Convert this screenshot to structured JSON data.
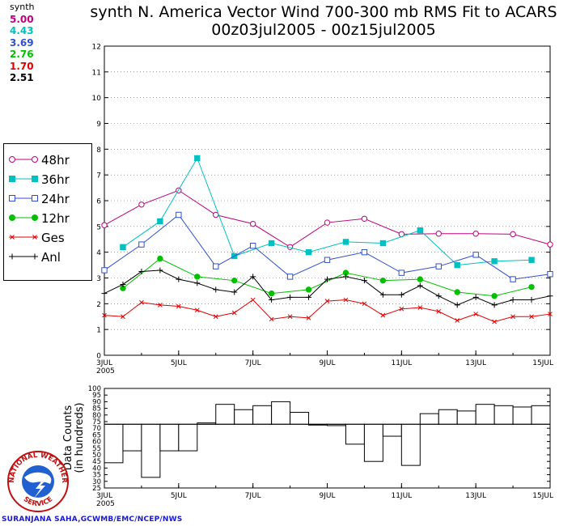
{
  "titles": {
    "line1": "synth N. America Vector Wind 700-300 mb RMS Fit to ACARS",
    "line2": "00z03jul2005 - 00z15jul2005"
  },
  "stats": {
    "header": "synth",
    "items": [
      {
        "value": "5.00",
        "color": "#c0007f"
      },
      {
        "value": "4.43",
        "color": "#00c0c0"
      },
      {
        "value": "3.69",
        "color": "#3050d0"
      },
      {
        "value": "2.76",
        "color": "#00c000"
      },
      {
        "value": "1.70",
        "color": "#e00000"
      },
      {
        "value": "2.51",
        "color": "#000000"
      }
    ]
  },
  "legend": [
    {
      "label": "48hr",
      "color": "#c0007f",
      "marker": "circle-open"
    },
    {
      "label": "36hr",
      "color": "#00c0c0",
      "marker": "square-filled"
    },
    {
      "label": "24hr",
      "color": "#3050d0",
      "marker": "square-open"
    },
    {
      "label": "12hr",
      "color": "#00c000",
      "marker": "circle-filled"
    },
    {
      "label": "Ges",
      "color": "#e00000",
      "marker": "x"
    },
    {
      "label": "Anl",
      "color": "#000000",
      "marker": "plus"
    }
  ],
  "logo": {
    "top_text": "NATIONAL WEATHER",
    "bottom_text": "SERVICE",
    "ring_color": "#c01010",
    "disc_color": "#2060d0"
  },
  "credit": "SURANJANA SAHA,GCWMB/EMC/NCEP/NWS",
  "chart_data": [
    {
      "type": "line",
      "ylim": [
        0,
        12
      ],
      "y_ticks": [
        "0",
        "1",
        "2",
        "3",
        "4",
        "5",
        "6",
        "7",
        "8",
        "9",
        "10",
        "11",
        "12"
      ],
      "x_ticks": [
        "3JUL\n2005",
        "5JUL",
        "7JUL",
        "9JUL",
        "11JUL",
        "13JUL",
        "15JUL"
      ],
      "xlim": [
        3,
        15
      ],
      "grid": "horizontal-dotted",
      "series": [
        {
          "name": "48hr",
          "color": "#c0007f",
          "marker": "circle-open",
          "x": [
            3,
            4,
            5,
            6,
            7,
            8,
            9,
            10,
            11,
            12,
            13,
            14,
            15
          ],
          "y": [
            5.05,
            5.85,
            6.4,
            5.45,
            5.1,
            4.2,
            5.15,
            5.3,
            4.7,
            4.72,
            4.72,
            4.7,
            4.3
          ]
        },
        {
          "name": "36hr",
          "color": "#00c0c0",
          "marker": "square-filled",
          "x": [
            3.5,
            4.5,
            5.5,
            6.5,
            7.5,
            8.5,
            9.5,
            10.5,
            11.5,
            12.5,
            13.5,
            14.5
          ],
          "y": [
            4.2,
            5.2,
            7.65,
            3.85,
            4.35,
            4.0,
            4.4,
            4.35,
            4.85,
            3.5,
            3.65,
            3.7
          ]
        },
        {
          "name": "24hr",
          "color": "#3050d0",
          "marker": "square-open",
          "x": [
            3,
            4,
            5,
            6,
            7,
            8,
            9,
            10,
            11,
            12,
            13,
            14,
            15
          ],
          "y": [
            3.3,
            4.3,
            5.45,
            3.45,
            4.25,
            3.05,
            3.7,
            4.0,
            3.2,
            3.45,
            3.9,
            2.95,
            3.15
          ]
        },
        {
          "name": "12hr",
          "color": "#00c000",
          "marker": "circle-filled",
          "x": [
            3.5,
            4.5,
            5.5,
            6.5,
            7.5,
            8.5,
            9.5,
            10.5,
            11.5,
            12.5,
            13.5,
            14.5
          ],
          "y": [
            2.6,
            3.75,
            3.05,
            2.9,
            2.4,
            2.55,
            3.2,
            2.9,
            2.95,
            2.45,
            2.3,
            2.65
          ]
        },
        {
          "name": "Ges",
          "color": "#e00000",
          "marker": "x",
          "x": [
            3,
            3.5,
            4,
            4.5,
            5,
            5.5,
            6,
            6.5,
            7,
            7.5,
            8,
            8.5,
            9,
            9.5,
            10,
            10.5,
            11,
            11.5,
            12,
            12.5,
            13,
            13.5,
            14,
            14.5,
            15
          ],
          "y": [
            1.55,
            1.5,
            2.05,
            1.95,
            1.9,
            1.75,
            1.5,
            1.65,
            2.15,
            1.4,
            1.5,
            1.45,
            2.1,
            2.15,
            2.0,
            1.55,
            1.8,
            1.85,
            1.7,
            1.35,
            1.6,
            1.3,
            1.5,
            1.5,
            1.6
          ]
        },
        {
          "name": "Anl",
          "color": "#000000",
          "marker": "plus",
          "x": [
            3,
            3.5,
            4,
            4.5,
            5,
            5.5,
            6,
            6.5,
            7,
            7.5,
            8,
            8.5,
            9,
            9.5,
            10,
            10.5,
            11,
            11.5,
            12,
            12.5,
            13,
            13.5,
            14,
            14.5,
            15
          ],
          "y": [
            2.4,
            2.75,
            3.25,
            3.3,
            2.95,
            2.8,
            2.55,
            2.45,
            3.05,
            2.15,
            2.25,
            2.25,
            2.95,
            3.05,
            2.9,
            2.35,
            2.35,
            2.7,
            2.3,
            1.95,
            2.25,
            1.95,
            2.15,
            2.15,
            2.3
          ]
        }
      ]
    },
    {
      "type": "bar",
      "ylabel": "Data Counts\n(in hundreds)",
      "ylim": [
        25,
        100
      ],
      "y_ticks": [
        "25",
        "30",
        "35",
        "40",
        "45",
        "50",
        "55",
        "60",
        "65",
        "70",
        "75",
        "80",
        "85",
        "90",
        "95",
        "100"
      ],
      "baseline": 73,
      "x_ticks": [
        "3JUL\n2005",
        "5JUL",
        "7JUL",
        "9JUL",
        "11JUL",
        "13JUL",
        "15JUL"
      ],
      "xlim": [
        3,
        15
      ],
      "bar_width_days": 0.5,
      "x": [
        3.25,
        3.75,
        4.25,
        4.75,
        5.25,
        5.75,
        6.25,
        6.75,
        7.25,
        7.75,
        8.25,
        8.75,
        9.25,
        9.75,
        10.25,
        10.75,
        11.25,
        11.75,
        12.25,
        12.75,
        13.25,
        13.75,
        14.25,
        14.75
      ],
      "values": [
        44,
        53,
        33,
        53,
        53,
        74,
        88,
        84,
        87,
        90,
        82,
        73,
        72,
        58,
        45,
        64,
        42,
        81,
        84,
        83,
        88,
        87,
        86,
        87
      ]
    }
  ]
}
